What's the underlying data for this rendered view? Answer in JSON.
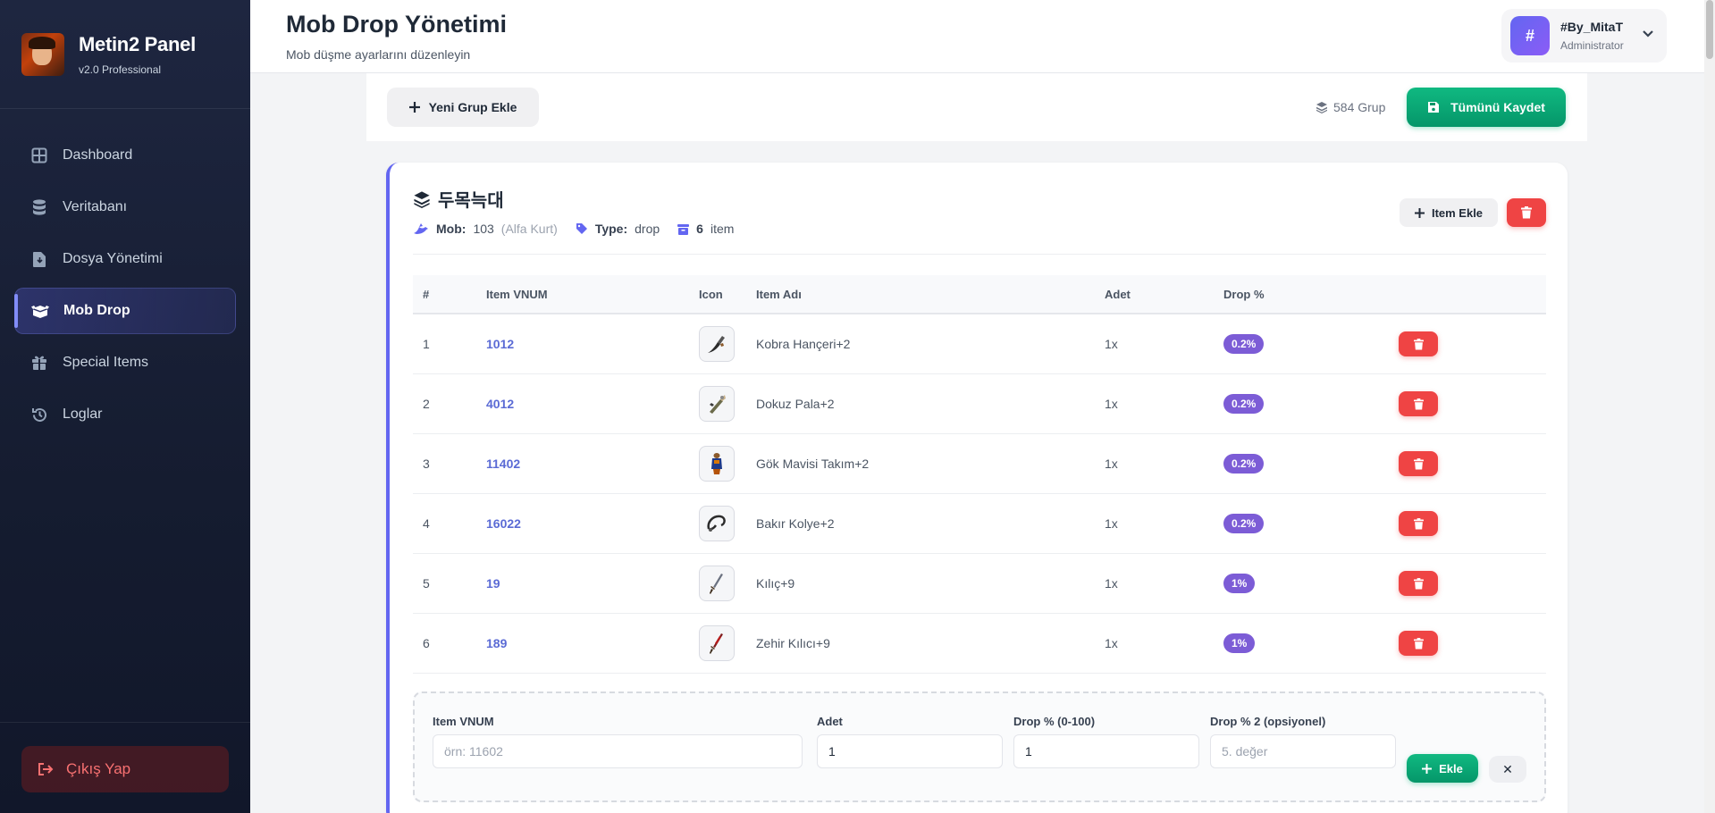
{
  "colors": {
    "sidebar_bg": "#1e2640",
    "accent": "#6366f1",
    "success": "#10b981",
    "danger": "#ef4444",
    "badge": "#7c5cd6"
  },
  "brand": {
    "title": "Metin2 Panel",
    "version": "v2.0 Professional",
    "logo_icon": "character-portrait"
  },
  "sidebar": {
    "items": [
      {
        "label": "Dashboard",
        "icon": "dashboard-icon"
      },
      {
        "label": "Veritabanı",
        "icon": "database-icon"
      },
      {
        "label": "Dosya Yönetimi",
        "icon": "file-icon"
      },
      {
        "label": "Mob Drop",
        "icon": "box-open-icon",
        "active": true
      },
      {
        "label": "Special Items",
        "icon": "gift-icon"
      },
      {
        "label": "Loglar",
        "icon": "history-icon"
      }
    ],
    "logout_label": "Çıkış Yap"
  },
  "header": {
    "title": "Mob Drop Yönetimi",
    "subtitle": "Mob düşme ayarlarını düzenleyin",
    "user": {
      "avatar_text": "#",
      "name": "#By_MitaT",
      "role": "Administrator"
    }
  },
  "toolbar": {
    "new_group_label": "Yeni Grup Ekle",
    "group_count": "584 Grup",
    "save_all_label": "Tümünü Kaydet"
  },
  "group": {
    "title": "두목늑대",
    "mob_label": "Mob:",
    "mob_value": "103",
    "mob_name": "(Alfa Kurt)",
    "type_label": "Type:",
    "type_value": "drop",
    "item_count": "6",
    "item_count_label": "item",
    "add_item_label": "Item Ekle"
  },
  "table": {
    "headers": [
      "#",
      "Item VNUM",
      "Icon",
      "Item Adı",
      "Adet",
      "Drop %"
    ],
    "rows": [
      {
        "num": "1",
        "vnum": "1012",
        "name": "Kobra Hançeri+2",
        "adet": "1x",
        "drop": "0.2%",
        "icon": "dagger-icon"
      },
      {
        "num": "2",
        "vnum": "4012",
        "name": "Dokuz Pala+2",
        "adet": "1x",
        "drop": "0.2%",
        "icon": "claw-blade-icon"
      },
      {
        "num": "3",
        "vnum": "11402",
        "name": "Gök Mavisi Takım+2",
        "adet": "1x",
        "drop": "0.2%",
        "icon": "armor-icon"
      },
      {
        "num": "4",
        "vnum": "16022",
        "name": "Bakır Kolye+2",
        "adet": "1x",
        "drop": "0.2%",
        "icon": "necklace-icon"
      },
      {
        "num": "5",
        "vnum": "19",
        "name": "Kılıç+9",
        "adet": "1x",
        "drop": "1%",
        "icon": "sword-icon"
      },
      {
        "num": "6",
        "vnum": "189",
        "name": "Zehir Kılıcı+9",
        "adet": "1x",
        "drop": "1%",
        "icon": "poison-sword-icon"
      }
    ]
  },
  "add_form": {
    "vnum_label": "Item VNUM",
    "vnum_placeholder": "örn: 11602",
    "adet_label": "Adet",
    "adet_value": "1",
    "drop_label": "Drop % (0-100)",
    "drop_value": "1",
    "drop2_label": "Drop % 2 (opsiyonel)",
    "drop2_placeholder": "5. değer",
    "add_label": "Ekle",
    "close_label": "✕"
  }
}
